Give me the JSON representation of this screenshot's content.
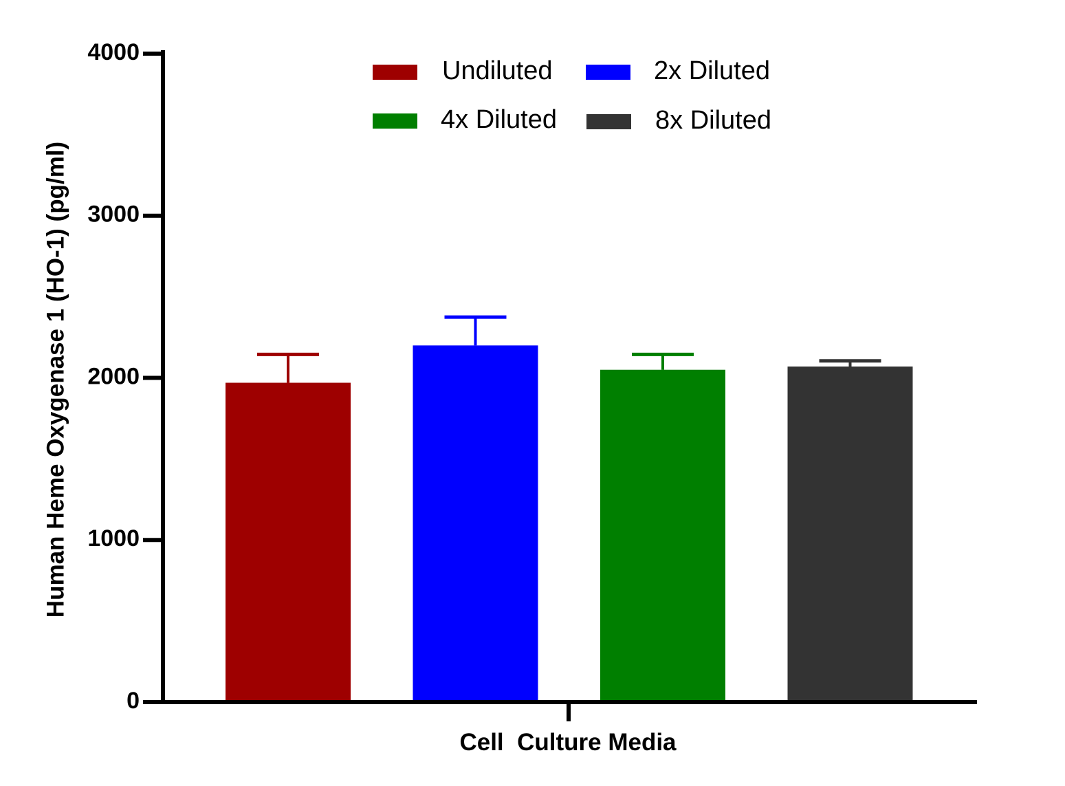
{
  "chart_data": {
    "type": "bar",
    "title": "",
    "xlabel": "Cell  Culture Media",
    "ylabel": "Human Heme Oxygenase 1 (HO-1) (pg/ml)",
    "ylim": [
      0,
      4000
    ],
    "yticks": [
      0,
      1000,
      2000,
      3000,
      4000
    ],
    "grid": false,
    "legend_position": "top",
    "series": [
      {
        "name": "Undiluted",
        "value": 1970,
        "error": 175,
        "color": "#9e0000"
      },
      {
        "name": "2x Diluted",
        "value": 2200,
        "error": 175,
        "color": "#0000ff"
      },
      {
        "name": "4x Diluted",
        "value": 2050,
        "error": 95,
        "color": "#007f00"
      },
      {
        "name": "8x Diluted",
        "value": 2070,
        "error": 35,
        "color": "#333333"
      }
    ]
  }
}
